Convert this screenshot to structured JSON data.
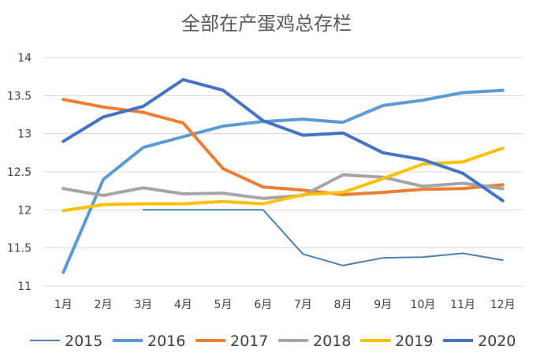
{
  "chart_data": {
    "type": "line",
    "title": "全部在产蛋鸡总存栏",
    "xlabel": "",
    "ylabel": "",
    "categories": [
      "1月",
      "2月",
      "3月",
      "4月",
      "5月",
      "6月",
      "7月",
      "8月",
      "9月",
      "10月",
      "11月",
      "12月"
    ],
    "ylim": [
      11,
      14
    ],
    "yticks": [
      11,
      11.5,
      12,
      12.5,
      13,
      13.5,
      14
    ],
    "ytick_labels": [
      "11",
      "11.5",
      "12",
      "12.5",
      "13",
      "13.5",
      "14"
    ],
    "grid": true,
    "legend_position": "bottom",
    "series": [
      {
        "name": "2015",
        "color": "#4a7fb0",
        "width": 2,
        "values": [
          null,
          null,
          12.0,
          12.0,
          12.0,
          12.0,
          11.42,
          11.27,
          11.37,
          11.38,
          11.43,
          11.34
        ]
      },
      {
        "name": "2016",
        "color": "#5b9bd5",
        "width": 4,
        "values": [
          11.18,
          12.4,
          12.82,
          12.96,
          13.1,
          13.16,
          13.19,
          13.15,
          13.37,
          13.44,
          13.54,
          13.57
        ]
      },
      {
        "name": "2017",
        "color": "#ed7d31",
        "width": 4,
        "values": [
          13.45,
          13.35,
          13.28,
          13.14,
          12.54,
          12.3,
          12.26,
          12.2,
          12.23,
          12.27,
          12.28,
          12.33
        ]
      },
      {
        "name": "2018",
        "color": "#a5a5a5",
        "width": 4,
        "values": [
          12.28,
          12.19,
          12.29,
          12.21,
          12.22,
          12.15,
          12.19,
          12.46,
          12.43,
          12.31,
          12.35,
          12.28
        ]
      },
      {
        "name": "2019",
        "color": "#ffc000",
        "width": 4,
        "values": [
          11.99,
          12.07,
          12.08,
          12.08,
          12.11,
          12.08,
          12.2,
          12.23,
          12.41,
          12.6,
          12.63,
          12.81
        ]
      },
      {
        "name": "2020",
        "color": "#4472c4",
        "width": 4,
        "values": [
          12.9,
          13.22,
          13.36,
          13.71,
          13.57,
          13.17,
          12.98,
          13.01,
          12.75,
          12.66,
          12.48,
          12.12
        ]
      }
    ]
  }
}
